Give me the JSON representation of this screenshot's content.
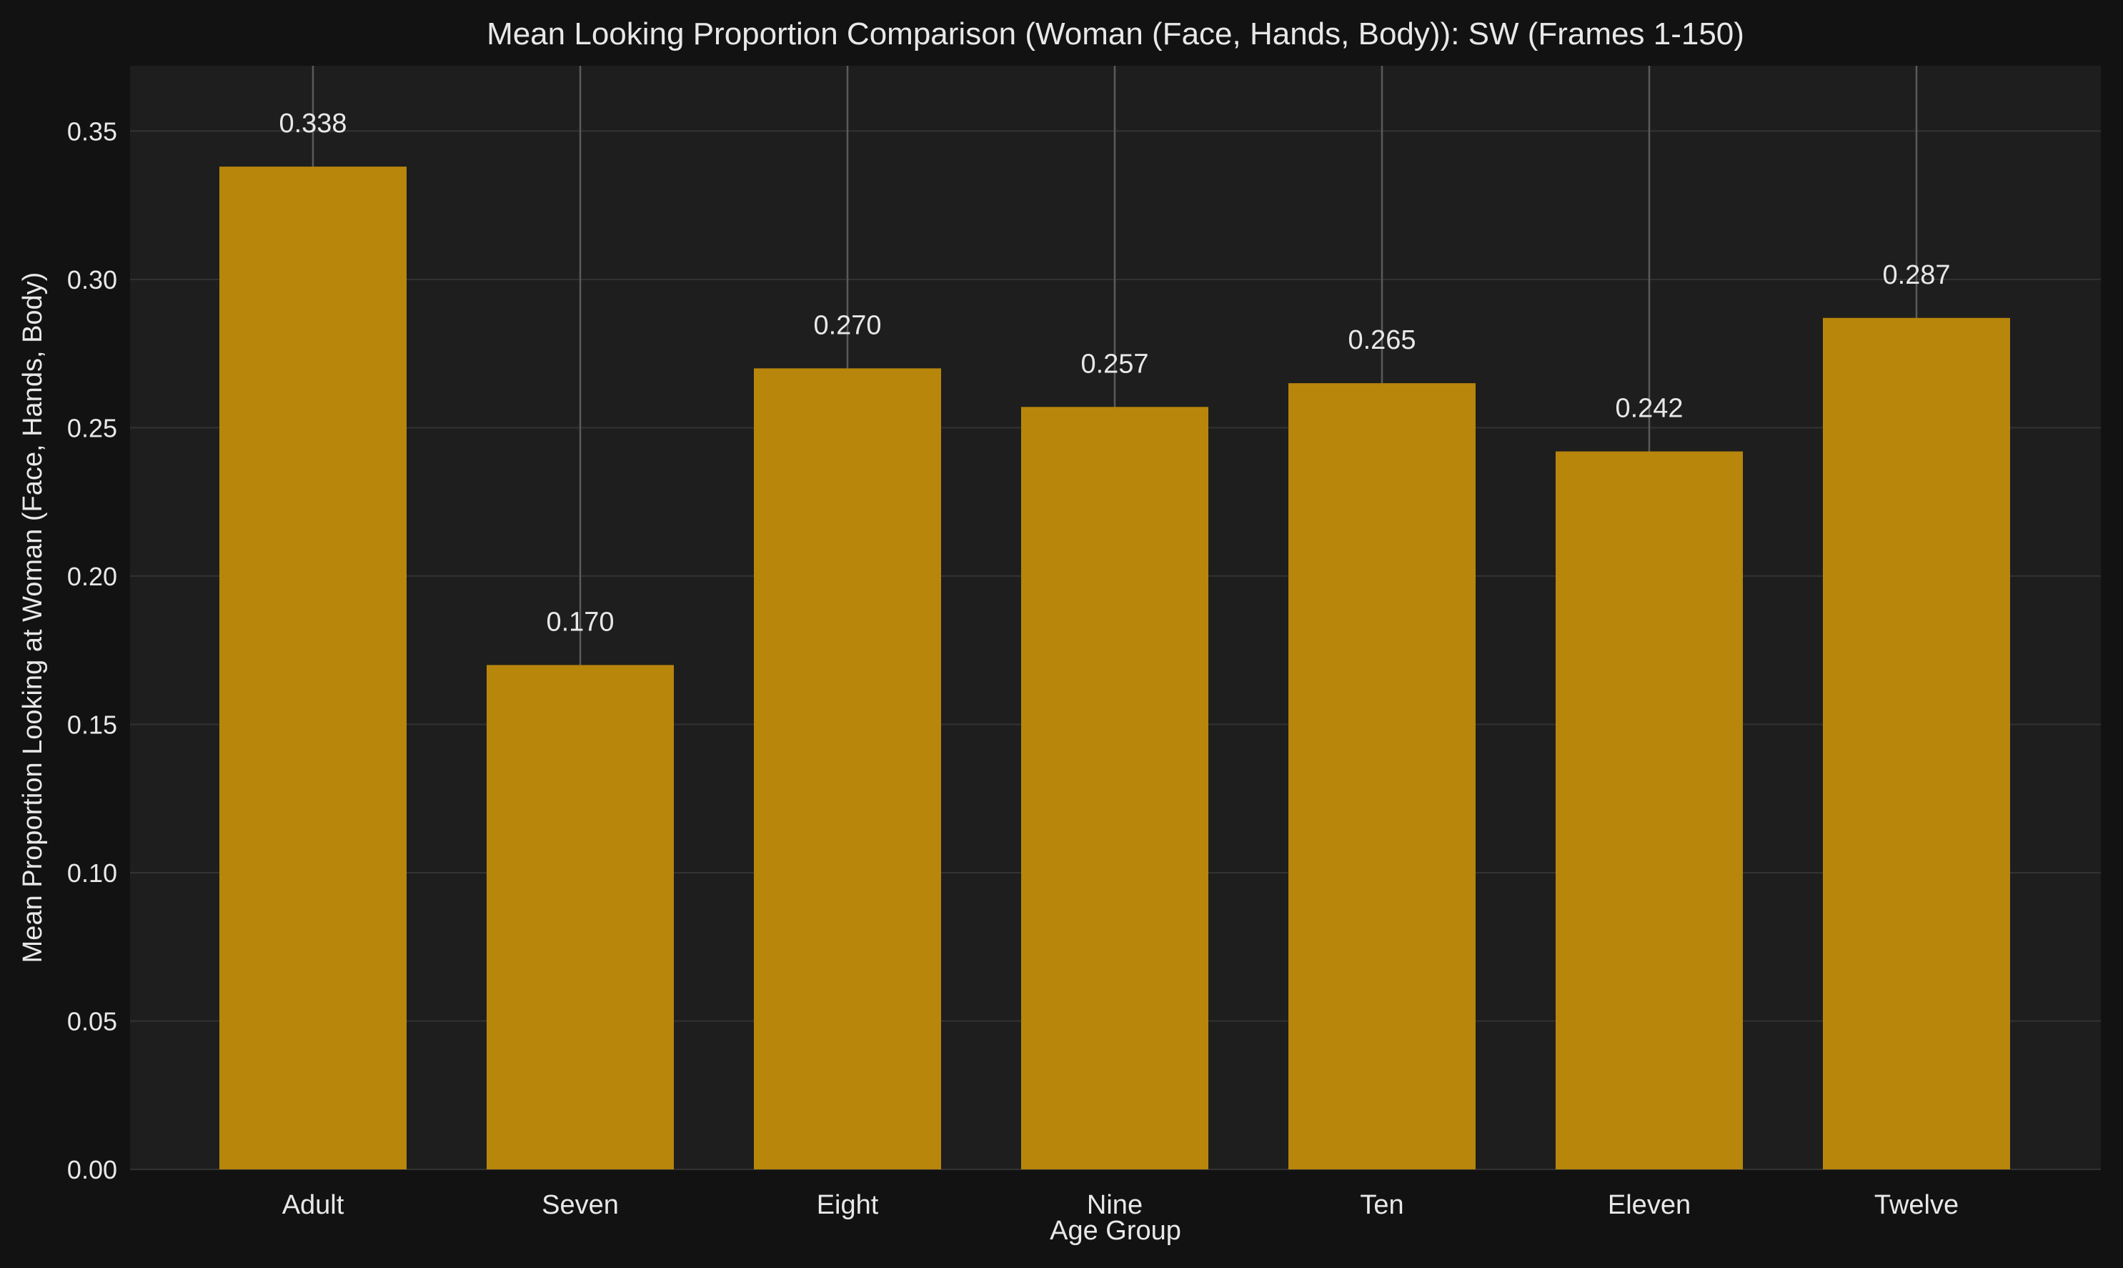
{
  "chart_data": {
    "type": "bar",
    "title": "Mean Looking Proportion Comparison (Woman (Face, Hands, Body)): SW (Frames 1-150)",
    "xlabel": "Age Group",
    "ylabel": "Mean Proportion Looking at Woman (Face, Hands, Body)",
    "categories": [
      "Adult",
      "Seven",
      "Eight",
      "Nine",
      "Ten",
      "Eleven",
      "Twelve"
    ],
    "values": [
      0.338,
      0.17,
      0.27,
      0.257,
      0.265,
      0.242,
      0.287
    ],
    "value_labels": [
      "0.338",
      "0.170",
      "0.270",
      "0.257",
      "0.265",
      "0.242",
      "0.287"
    ],
    "ylim": [
      0,
      0.372
    ],
    "yticks": [
      0.0,
      0.05,
      0.1,
      0.15,
      0.2,
      0.25,
      0.3,
      0.35
    ],
    "ytick_labels": [
      "0.00",
      "0.05",
      "0.10",
      "0.15",
      "0.20",
      "0.25",
      "0.30",
      "0.35"
    ],
    "grid": true,
    "colors": {
      "bar": "#b8860b",
      "plot_background": "#1e1e1e",
      "figure_background": "#121212",
      "grid": "#333333",
      "error_line": "#5a5a5a",
      "text": "#e8e8e8"
    }
  }
}
